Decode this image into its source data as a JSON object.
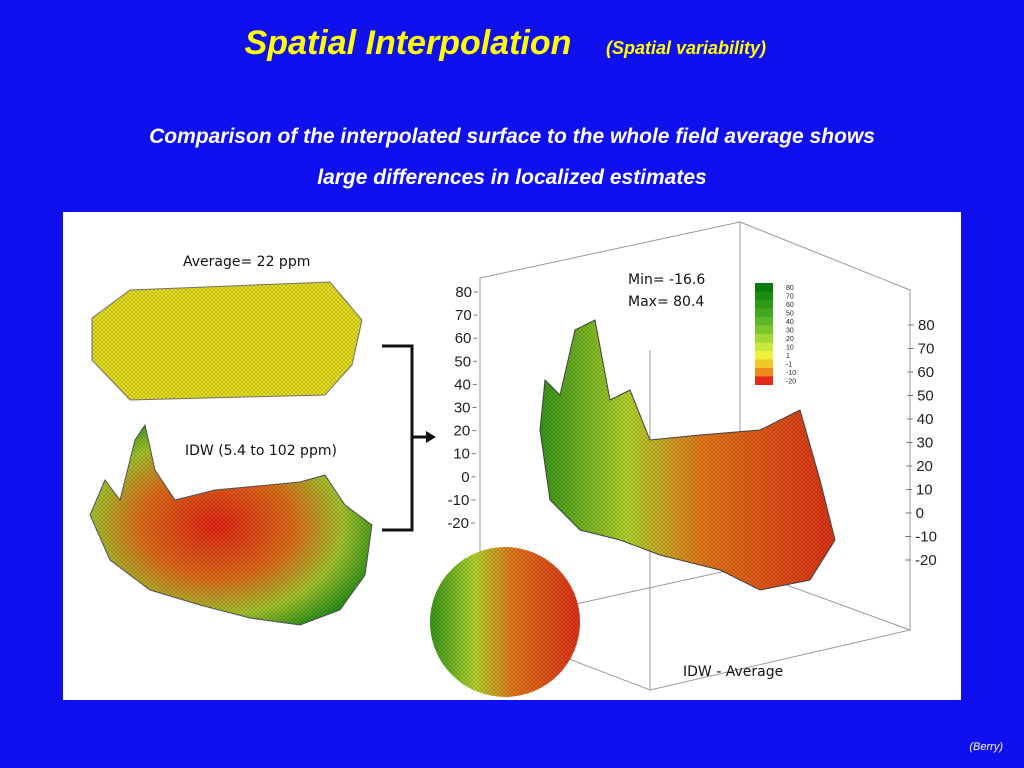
{
  "slide": {
    "title": "Spatial Interpolation",
    "subtitle": "(Spatial variability)",
    "description": [
      "Comparison of the interpolated surface to the whole field average shows",
      "large differences in localized estimates"
    ],
    "figure": {
      "average_label": "Average= 22 ppm",
      "idw_label": "IDW (5.4 to 102 ppm)",
      "min_label": "Min= -16.6",
      "max_label": "Max= 80.4",
      "difference_label": "IDW - Average",
      "left_axis_ticks": [
        80,
        70,
        60,
        50,
        40,
        30,
        20,
        10,
        0,
        -10,
        -20
      ],
      "right_axis_ticks": [
        80,
        70,
        60,
        50,
        40,
        30,
        20,
        10,
        0,
        -10,
        -20
      ],
      "legend": [
        {
          "label": "80",
          "color": "#0a7a0a"
        },
        {
          "label": "70",
          "color": "#1d8a12"
        },
        {
          "label": "60",
          "color": "#2e9a18"
        },
        {
          "label": "50",
          "color": "#44a81e"
        },
        {
          "label": "40",
          "color": "#5cb826"
        },
        {
          "label": "30",
          "color": "#7cc82c"
        },
        {
          "label": "20",
          "color": "#a2d834"
        },
        {
          "label": "10",
          "color": "#c8e83c"
        },
        {
          "label": "1",
          "color": "#eef23c"
        },
        {
          "label": "-1",
          "color": "#f0c828"
        },
        {
          "label": "-10",
          "color": "#ee8a1a"
        },
        {
          "label": "-20",
          "color": "#e8281a"
        }
      ]
    },
    "credit": "(Berry)"
  }
}
